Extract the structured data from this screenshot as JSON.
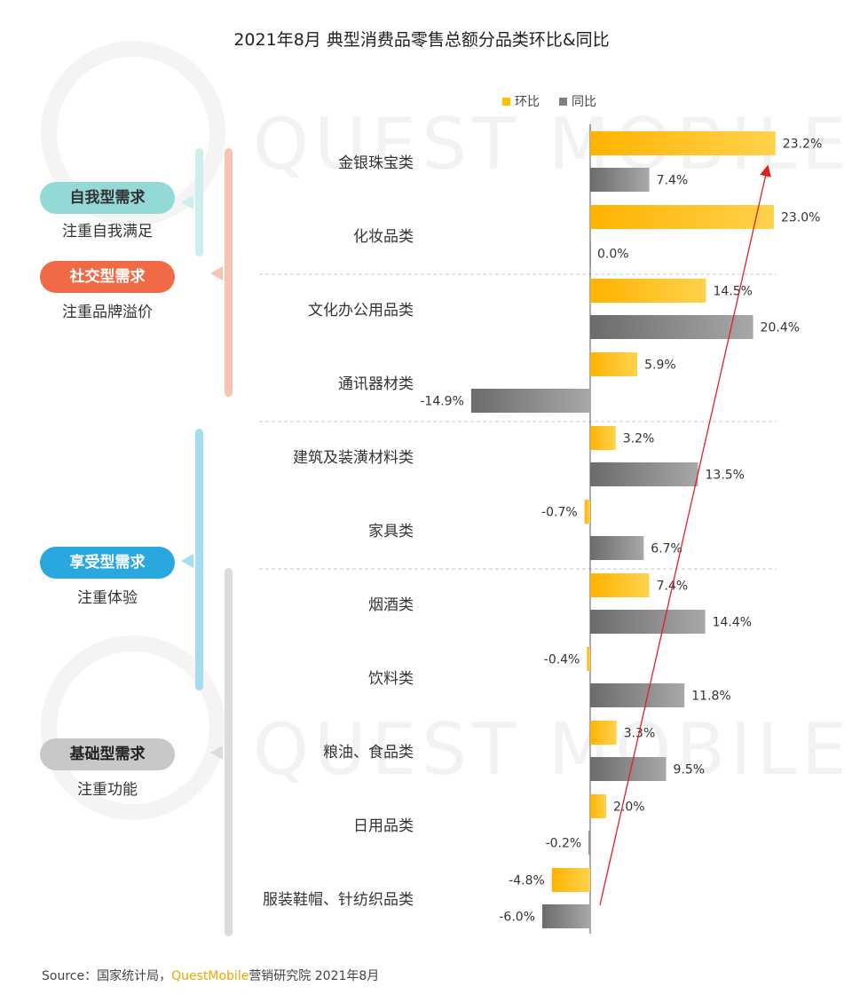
{
  "title": "2021年8月 典型消费品零售总额分品类环比&同比",
  "legend": {
    "mom": "环比",
    "yoy": "同比"
  },
  "colors": {
    "mom": "#ffc000",
    "yoy": "#7f7f7f",
    "arrow": "#e02020"
  },
  "watermark": "QUEST MOBILE",
  "groups": [
    {
      "label": "自我型需求",
      "sub": "注重自我满足",
      "color": "#93d9d6"
    },
    {
      "label": "社交型需求",
      "sub": "注重品牌溢价",
      "color": "#f06a45"
    },
    {
      "label": "享受型需求",
      "sub": "注重体验",
      "color": "#2aa7df"
    },
    {
      "label": "基础型需求",
      "sub": "注重功能",
      "color": "#c8c8c8"
    }
  ],
  "chart_data": {
    "type": "bar",
    "orientation": "horizontal",
    "title": "2021年8月 典型消费品零售总额分品类环比&同比",
    "categories": [
      "金银珠宝类",
      "化妆品类",
      "文化办公用品类",
      "通讯器材类",
      "建筑及装潢材料类",
      "家具类",
      "烟酒类",
      "饮料类",
      "粮油、食品类",
      "日用品类",
      "服装鞋帽、针纺织品类"
    ],
    "series": [
      {
        "name": "环比",
        "values": [
          23.2,
          23.0,
          14.5,
          5.9,
          3.2,
          -0.7,
          7.4,
          -0.4,
          3.3,
          2.0,
          -4.8
        ],
        "labels": [
          "23.2%",
          "23.0%",
          "14.5%",
          "5.9%",
          "3.2%",
          "-0.7%",
          "7.4%",
          "-0.4%",
          "3.3%",
          "2.0%",
          "-4.8%"
        ]
      },
      {
        "name": "同比",
        "values": [
          7.4,
          0.0,
          20.4,
          -14.9,
          13.5,
          6.7,
          14.4,
          11.8,
          9.5,
          -0.2,
          -6.0
        ],
        "labels": [
          "7.4%",
          "0.0%",
          "20.4%",
          "-14.9%",
          "13.5%",
          "6.7%",
          "14.4%",
          "11.8%",
          "9.5%",
          "-0.2%",
          "-6.0%"
        ]
      }
    ],
    "legend_position": "top"
  },
  "source": {
    "prefix": "Source：国家统计局，",
    "brand": "QuestMobile",
    "suffix": "营销研究院 2021年8月"
  }
}
